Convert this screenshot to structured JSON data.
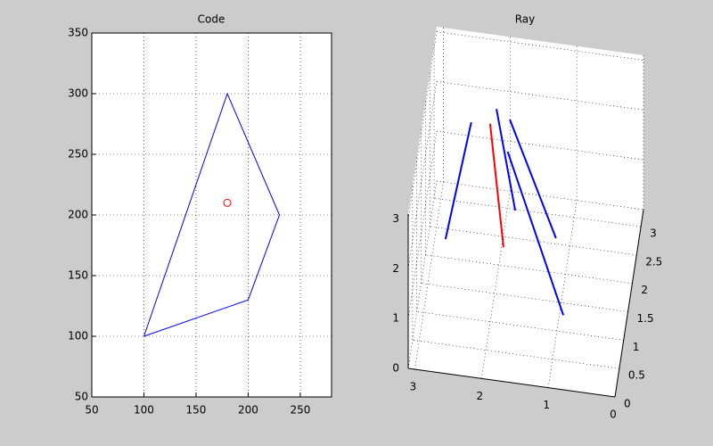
{
  "chart_data": [
    {
      "type": "line",
      "title": "Code",
      "xlim": [
        50,
        280
      ],
      "ylim": [
        50,
        350
      ],
      "xticks": [
        50,
        100,
        150,
        200,
        250
      ],
      "yticks": [
        50,
        100,
        150,
        200,
        250,
        300,
        350
      ],
      "grid": true,
      "series": [
        {
          "color": "#0000ff",
          "x": [
            100,
            180,
            230,
            200,
            100
          ],
          "y": [
            100,
            300,
            200,
            130,
            100
          ]
        },
        {
          "color": "#ff0000",
          "marker": "o",
          "x": [
            180
          ],
          "y": [
            210
          ]
        }
      ]
    },
    {
      "type": "line3d",
      "title": "Ray",
      "xlim": [
        0,
        3.1
      ],
      "ylim": [
        0,
        3.3
      ],
      "zlim": [
        0,
        3.1
      ],
      "xticks": [
        0,
        1,
        2,
        3
      ],
      "yticks": [
        0,
        0.5,
        1,
        1.5,
        2,
        2.5,
        3
      ],
      "zticks": [
        0,
        1,
        2,
        3
      ],
      "grid": true,
      "series": [
        {
          "color": "#ff0000",
          "x": [
            2.11,
            1.86
          ],
          "y": [
            1.84,
            1.46
          ],
          "z": [
            3,
            1
          ]
        },
        {
          "color": "#0000ff",
          "x": [
            2.39,
            2.73
          ],
          "y": [
            1.82,
            1.46
          ],
          "z": [
            3,
            1
          ]
        },
        {
          "color": "#0000ff",
          "x": [
            2.05,
            1.77
          ],
          "y": [
            2.11,
            2.12
          ],
          "z": [
            3,
            1
          ]
        },
        {
          "color": "#0000ff",
          "x": [
            1.83,
            1.11
          ],
          "y": [
            1.96,
            1.74
          ],
          "z": [
            3,
            1
          ]
        },
        {
          "color": "#0000ff",
          "x": [
            1.79,
            0.83
          ],
          "y": [
            1.4,
            0.43
          ],
          "z": [
            3,
            1
          ]
        }
      ]
    }
  ]
}
